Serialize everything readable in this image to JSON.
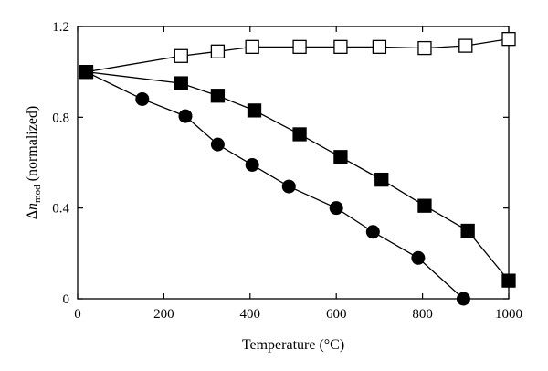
{
  "chart_data": {
    "type": "scatter",
    "xlabel": "Temperature (°C)",
    "ylabel": {
      "delta": "Δ",
      "n": "n",
      "sub": "mod",
      "rest": " (normalized)"
    },
    "xlim": [
      0,
      1000
    ],
    "ylim": [
      0,
      1.2
    ],
    "xticks": [
      "0",
      "200",
      "400",
      "600",
      "800",
      "1000"
    ],
    "yticks": [
      "0",
      "0.4",
      "0.8",
      "1.2"
    ],
    "grid": false,
    "series": [
      {
        "marker": "open-square",
        "x": [
          20,
          240,
          325,
          405,
          515,
          610,
          700,
          805,
          900,
          1000
        ],
        "y": [
          1.0,
          1.07,
          1.09,
          1.11,
          1.11,
          1.11,
          1.11,
          1.105,
          1.115,
          1.145
        ]
      },
      {
        "marker": "filled-square",
        "x": [
          20,
          240,
          325,
          410,
          515,
          610,
          705,
          805,
          905,
          1000
        ],
        "y": [
          1.0,
          0.95,
          0.895,
          0.83,
          0.725,
          0.625,
          0.525,
          0.41,
          0.3,
          0.08
        ]
      },
      {
        "marker": "filled-circle",
        "x": [
          20,
          150,
          250,
          325,
          405,
          490,
          600,
          685,
          790,
          895
        ],
        "y": [
          1.0,
          0.88,
          0.805,
          0.68,
          0.59,
          0.495,
          0.4,
          0.295,
          0.18,
          0.0
        ]
      }
    ]
  }
}
